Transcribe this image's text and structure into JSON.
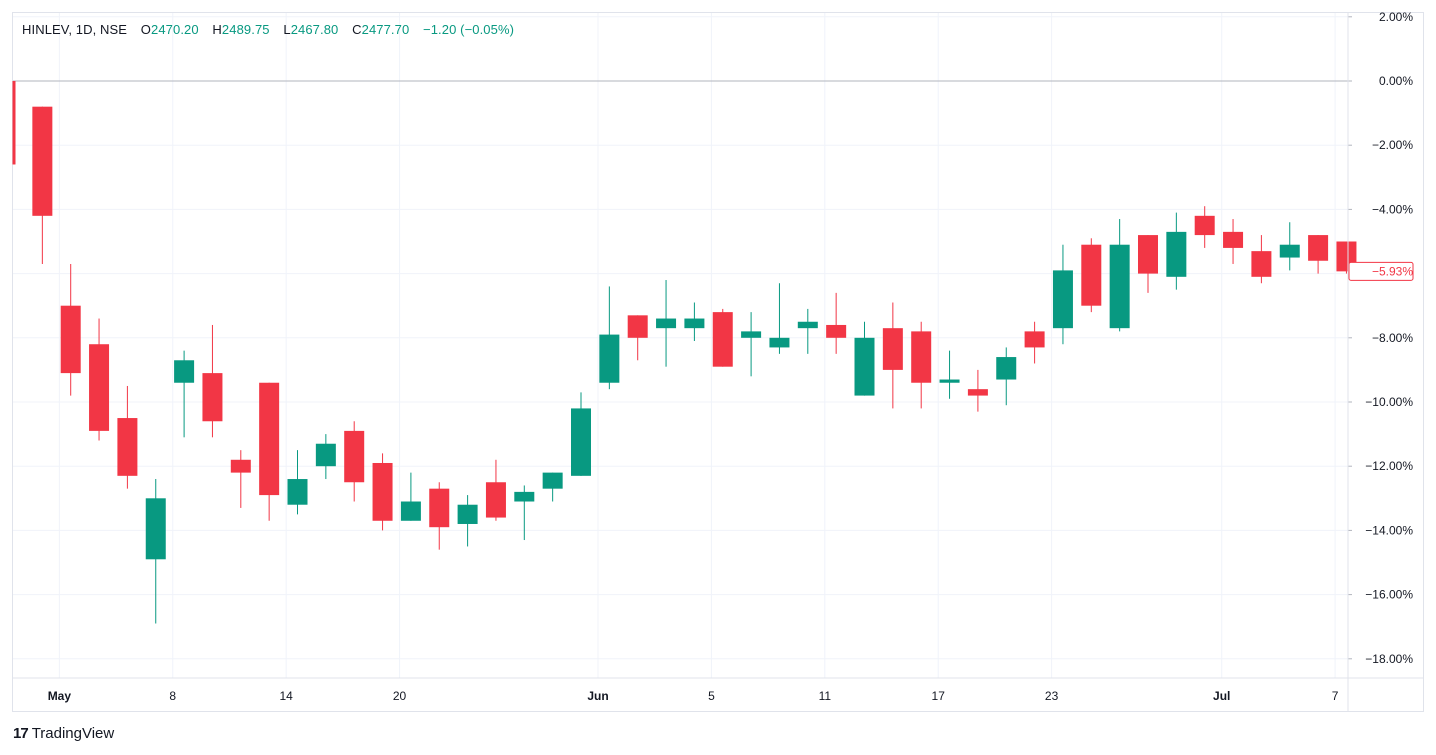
{
  "header": {
    "symbol": "HINLEV, 1D, NSE",
    "open_label": "O",
    "open": "2470.20",
    "high_label": "H",
    "high": "2489.75",
    "low_label": "L",
    "low": "2467.80",
    "close_label": "C",
    "close": "2477.70",
    "change": "−1.20 (−0.05%)"
  },
  "brand": {
    "logo": "17",
    "name": "TradingView"
  },
  "colors": {
    "up": "#089981",
    "down": "#f23645",
    "grid": "#f0f3fa",
    "baseline": "#b2b5be"
  },
  "chart_data": {
    "type": "candlestick",
    "title": "HINLEV, 1D, NSE",
    "y_unit": "percent change",
    "ylim": [
      -18.8,
      2.2
    ],
    "y_ticks": [
      2,
      0,
      -2,
      -4,
      -6,
      -8,
      -10,
      -12,
      -14,
      -16,
      -18
    ],
    "y_tick_labels": [
      "2.00%",
      "0.00%",
      "−2.00%",
      "−4.00%",
      "−6.00%",
      "−8.00%",
      "−10.00%",
      "−12.00%",
      "−14.00%",
      "−16.00%",
      "−18.00%"
    ],
    "x_ticks": [
      {
        "index": 1.6,
        "label": "May",
        "bold": true
      },
      {
        "index": 5.6,
        "label": "8",
        "bold": false
      },
      {
        "index": 9.6,
        "label": "14",
        "bold": false
      },
      {
        "index": 13.6,
        "label": "20",
        "bold": false
      },
      {
        "index": 20.6,
        "label": "Jun",
        "bold": true
      },
      {
        "index": 24.6,
        "label": "5",
        "bold": false
      },
      {
        "index": 28.6,
        "label": "11",
        "bold": false
      },
      {
        "index": 32.6,
        "label": "17",
        "bold": false
      },
      {
        "index": 36.6,
        "label": "23",
        "bold": false
      },
      {
        "index": 42.6,
        "label": "Jul",
        "bold": true
      },
      {
        "index": 46.6,
        "label": "7",
        "bold": false
      }
    ],
    "baseline": 0,
    "last_value": -5.93,
    "last_value_label": "−5.93%",
    "candles": [
      {
        "o": 0.0,
        "h": 0.0,
        "l": -2.6,
        "c": -2.6
      },
      {
        "o": -0.8,
        "h": -0.8,
        "l": -5.7,
        "c": -4.2
      },
      {
        "o": -7.0,
        "h": -5.7,
        "l": -9.8,
        "c": -9.1
      },
      {
        "o": -8.2,
        "h": -7.4,
        "l": -11.2,
        "c": -10.9
      },
      {
        "o": -10.5,
        "h": -9.5,
        "l": -12.7,
        "c": -12.3
      },
      {
        "o": -14.9,
        "h": -12.4,
        "l": -16.9,
        "c": -13.0
      },
      {
        "o": -9.4,
        "h": -8.4,
        "l": -11.1,
        "c": -8.7
      },
      {
        "o": -9.1,
        "h": -7.6,
        "l": -11.1,
        "c": -10.6
      },
      {
        "o": -11.8,
        "h": -11.5,
        "l": -13.3,
        "c": -12.2
      },
      {
        "o": -9.4,
        "h": -9.4,
        "l": -13.7,
        "c": -12.9
      },
      {
        "o": -13.2,
        "h": -11.5,
        "l": -13.5,
        "c": -12.4
      },
      {
        "o": -12.0,
        "h": -11.0,
        "l": -12.4,
        "c": -11.3
      },
      {
        "o": -10.9,
        "h": -10.6,
        "l": -13.1,
        "c": -12.5
      },
      {
        "o": -11.9,
        "h": -11.6,
        "l": -14.0,
        "c": -13.7
      },
      {
        "o": -13.7,
        "h": -12.2,
        "l": -13.7,
        "c": -13.1
      },
      {
        "o": -12.7,
        "h": -12.5,
        "l": -14.6,
        "c": -13.9
      },
      {
        "o": -13.8,
        "h": -12.9,
        "l": -14.5,
        "c": -13.2
      },
      {
        "o": -12.5,
        "h": -11.8,
        "l": -13.7,
        "c": -13.6
      },
      {
        "o": -13.1,
        "h": -12.6,
        "l": -14.3,
        "c": -12.8
      },
      {
        "o": -12.7,
        "h": -12.2,
        "l": -13.1,
        "c": -12.2
      },
      {
        "o": -12.3,
        "h": -9.7,
        "l": -12.3,
        "c": -10.2
      },
      {
        "o": -9.4,
        "h": -6.4,
        "l": -9.6,
        "c": -7.9
      },
      {
        "o": -7.3,
        "h": -7.3,
        "l": -8.7,
        "c": -8.0
      },
      {
        "o": -7.7,
        "h": -6.2,
        "l": -8.9,
        "c": -7.4
      },
      {
        "o": -7.7,
        "h": -6.9,
        "l": -8.1,
        "c": -7.4
      },
      {
        "o": -7.2,
        "h": -7.1,
        "l": -8.9,
        "c": -8.9
      },
      {
        "o": -8.0,
        "h": -7.2,
        "l": -9.2,
        "c": -7.8
      },
      {
        "o": -8.3,
        "h": -6.3,
        "l": -8.5,
        "c": -8.0
      },
      {
        "o": -7.7,
        "h": -7.1,
        "l": -8.5,
        "c": -7.5
      },
      {
        "o": -7.6,
        "h": -6.6,
        "l": -8.5,
        "c": -8.0
      },
      {
        "o": -9.8,
        "h": -7.5,
        "l": -9.8,
        "c": -8.0
      },
      {
        "o": -7.7,
        "h": -6.9,
        "l": -10.2,
        "c": -9.0
      },
      {
        "o": -7.8,
        "h": -7.5,
        "l": -10.2,
        "c": -9.4
      },
      {
        "o": -9.4,
        "h": -8.4,
        "l": -9.9,
        "c": -9.3
      },
      {
        "o": -9.6,
        "h": -9.0,
        "l": -10.3,
        "c": -9.8
      },
      {
        "o": -9.3,
        "h": -8.3,
        "l": -10.1,
        "c": -8.6
      },
      {
        "o": -7.8,
        "h": -7.5,
        "l": -8.8,
        "c": -8.3
      },
      {
        "o": -7.7,
        "h": -5.1,
        "l": -8.2,
        "c": -5.9
      },
      {
        "o": -5.1,
        "h": -4.9,
        "l": -7.2,
        "c": -7.0
      },
      {
        "o": -7.7,
        "h": -4.3,
        "l": -7.8,
        "c": -5.1
      },
      {
        "o": -4.8,
        "h": -4.8,
        "l": -6.6,
        "c": -6.0
      },
      {
        "o": -6.1,
        "h": -4.1,
        "l": -6.5,
        "c": -4.7
      },
      {
        "o": -4.2,
        "h": -3.9,
        "l": -5.2,
        "c": -4.8
      },
      {
        "o": -4.7,
        "h": -4.3,
        "l": -5.7,
        "c": -5.2
      },
      {
        "o": -5.3,
        "h": -4.8,
        "l": -6.3,
        "c": -6.1
      },
      {
        "o": -5.5,
        "h": -4.4,
        "l": -5.9,
        "c": -5.1
      },
      {
        "o": -4.8,
        "h": -4.8,
        "l": -6.0,
        "c": -5.6
      },
      {
        "o": -5.0,
        "h": -5.0,
        "l": -6.0,
        "c": -5.93
      }
    ]
  }
}
